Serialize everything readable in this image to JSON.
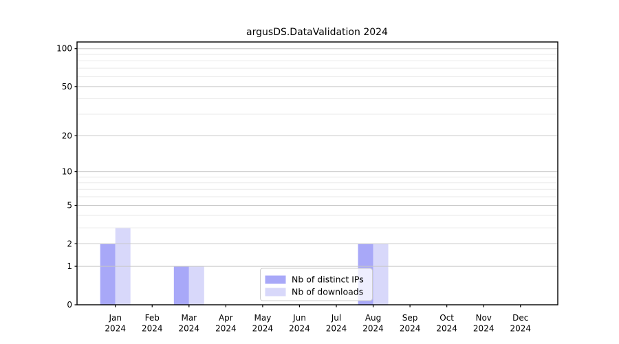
{
  "chart_data": {
    "type": "bar",
    "title": "argusDS.DataValidation 2024",
    "categories": [
      {
        "month": "Jan",
        "year": "2024"
      },
      {
        "month": "Feb",
        "year": "2024"
      },
      {
        "month": "Mar",
        "year": "2024"
      },
      {
        "month": "Apr",
        "year": "2024"
      },
      {
        "month": "May",
        "year": "2024"
      },
      {
        "month": "Jun",
        "year": "2024"
      },
      {
        "month": "Jul",
        "year": "2024"
      },
      {
        "month": "Aug",
        "year": "2024"
      },
      {
        "month": "Sep",
        "year": "2024"
      },
      {
        "month": "Oct",
        "year": "2024"
      },
      {
        "month": "Nov",
        "year": "2024"
      },
      {
        "month": "Dec",
        "year": "2024"
      }
    ],
    "series": [
      {
        "name": "Nb of distinct IPs",
        "color": "#a8a8f8",
        "values": [
          2,
          0,
          1,
          0,
          0,
          0,
          0,
          2,
          0,
          0,
          0,
          0
        ]
      },
      {
        "name": "Nb of downloads",
        "color": "#d8d8fa",
        "values": [
          3,
          0,
          1,
          0,
          0,
          0,
          0,
          2,
          0,
          0,
          0,
          0
        ]
      }
    ],
    "yscale": "log1p",
    "ylim": [
      0,
      113
    ],
    "yticks": [
      {
        "value": 0,
        "label": "0"
      },
      {
        "value": 1,
        "label": "1"
      },
      {
        "value": 2,
        "label": "2"
      },
      {
        "value": 5,
        "label": "5"
      },
      {
        "value": 10,
        "label": "10"
      },
      {
        "value": 20,
        "label": "20"
      },
      {
        "value": 50,
        "label": "50"
      },
      {
        "value": 100,
        "label": "100"
      }
    ],
    "yminor": [
      3,
      4,
      6,
      7,
      8,
      9,
      30,
      40,
      60,
      70,
      80,
      90
    ],
    "grid": true,
    "legend": {
      "position": "inside-lower-center",
      "entries": [
        "Nb of distinct IPs",
        "Nb of downloads"
      ]
    },
    "colors": {
      "major_grid": "#c6c6c6",
      "minor_grid": "#eaeaea",
      "axis": "#000000",
      "legend_border": "#cccccc",
      "legend_bg": "#ffffff"
    }
  }
}
